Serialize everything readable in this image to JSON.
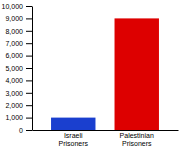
{
  "chart_data": {
    "type": "bar",
    "categories": [
      "Israeli\nPrisoners",
      "Palestinian\nPrisoners"
    ],
    "values": [
      1000,
      9000
    ],
    "colors": [
      "#1a3fcf",
      "#dd0000"
    ],
    "ylim": [
      0,
      10000
    ],
    "yticks": [
      0,
      {
        "value": 1000,
        "label": "1,000"
      },
      {
        "value": 2000,
        "label": "2,000"
      },
      {
        "value": 3000,
        "label": "3,000"
      },
      {
        "value": 4000,
        "label": "4,000"
      },
      {
        "value": 5000,
        "label": "5,000"
      },
      {
        "value": 6000,
        "label": "6,000"
      },
      {
        "value": 7000,
        "label": "7,000"
      },
      {
        "value": 8000,
        "label": "8,000"
      },
      {
        "value": 9000,
        "label": "9,000"
      },
      {
        "value": 10000,
        "label": "10,000"
      }
    ]
  }
}
